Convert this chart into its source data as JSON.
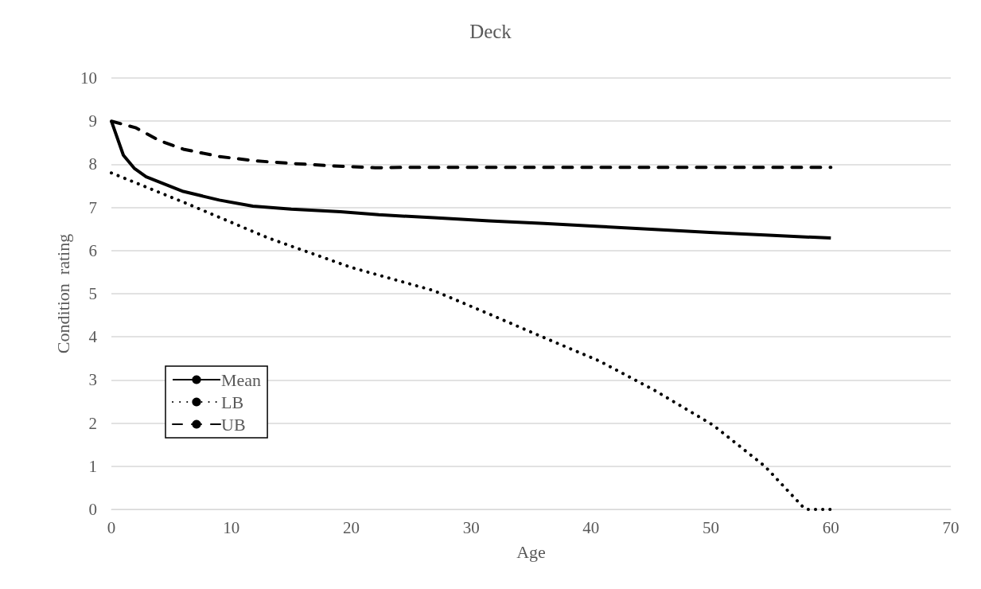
{
  "chart_data": {
    "type": "line",
    "title": "Deck",
    "xlabel": "Age",
    "ylabel": "Condition  rating",
    "xlim": [
      0,
      70
    ],
    "xticks": [
      0,
      10,
      20,
      30,
      40,
      50,
      60,
      70
    ],
    "ylim": [
      0,
      10
    ],
    "yticks": [
      0,
      1,
      2,
      3,
      4,
      5,
      6,
      7,
      8,
      9,
      10
    ],
    "grid": "y",
    "legend": "bottom left",
    "marker": "none",
    "series": [
      {
        "name": "Mean",
        "color": "#000000",
        "line_style": "solid",
        "x": [
          0,
          1,
          1.9,
          2.9,
          6,
          9,
          11.8,
          15,
          19.1,
          22.3,
          26.9,
          31.5,
          36.1,
          40.7,
          45.3,
          49.9,
          54.5,
          60
        ],
        "values": [
          9,
          8.21,
          7.91,
          7.71,
          7.37,
          7.17,
          7.03,
          6.96,
          6.9,
          6.83,
          6.76,
          6.69,
          6.63,
          6.56,
          6.49,
          6.42,
          6.36,
          6.29
        ]
      },
      {
        "name": "LB",
        "color": "#000000",
        "line_style": "dotted",
        "x": [
          0,
          6.2,
          13.1,
          20,
          26.9,
          31.5,
          36.1,
          40.7,
          45.3,
          50.2,
          54.5,
          57.7,
          58,
          60
        ],
        "values": [
          7.8,
          7.1,
          6.29,
          5.61,
          5.07,
          4.53,
          3.98,
          3.44,
          2.76,
          1.95,
          1.0,
          0.05,
          0,
          0
        ]
      },
      {
        "name": "UB",
        "color": "#000000",
        "line_style": "dashed",
        "x": [
          0,
          2,
          4,
          6,
          9,
          12,
          15,
          18,
          22,
          25,
          60
        ],
        "values": [
          9,
          8.85,
          8.55,
          8.35,
          8.18,
          8.08,
          8.02,
          7.97,
          7.92,
          7.93,
          7.93
        ]
      }
    ]
  }
}
